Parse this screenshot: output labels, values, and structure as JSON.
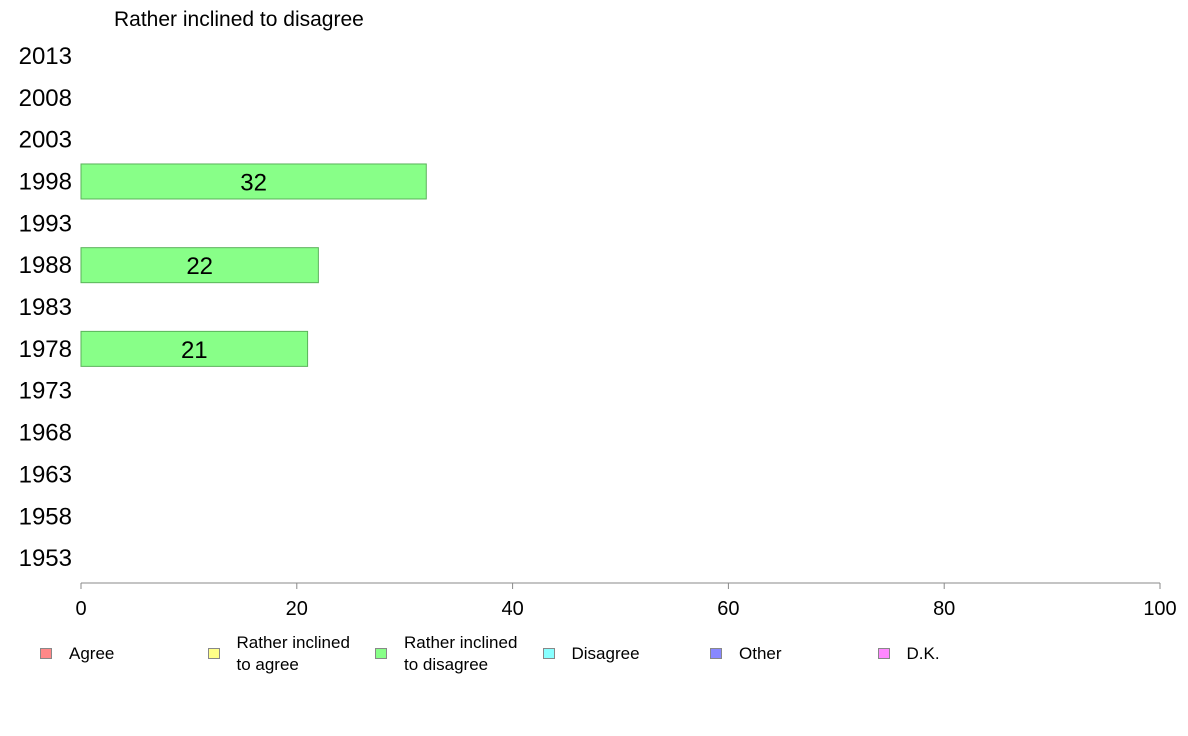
{
  "chart_data": {
    "type": "bar",
    "orientation": "horizontal",
    "title": "Rather inclined to disagree",
    "categories": [
      "2013",
      "2008",
      "2003",
      "1998",
      "1993",
      "1988",
      "1983",
      "1978",
      "1973",
      "1968",
      "1963",
      "1958",
      "1953"
    ],
    "series": [
      {
        "name": "Rather inclined to disagree",
        "color": "#88ff88",
        "values": [
          null,
          null,
          null,
          32,
          null,
          22,
          null,
          21,
          null,
          null,
          null,
          null,
          null
        ]
      }
    ],
    "xlim": [
      0,
      100
    ],
    "xticks": [
      "0",
      "20",
      "40",
      "60",
      "80",
      "100"
    ],
    "grid": false,
    "legend_position": "bottom",
    "legend": [
      {
        "label": "Agree",
        "color": "#ff8888"
      },
      {
        "label": "Rather inclined\nto agree",
        "color": "#ffff88"
      },
      {
        "label": "Rather inclined\nto disagree",
        "color": "#88ff88"
      },
      {
        "label": "Disagree",
        "color": "#88ffff"
      },
      {
        "label": "Other",
        "color": "#8888ff"
      },
      {
        "label": "D.K.",
        "color": "#ff88ff"
      }
    ]
  }
}
